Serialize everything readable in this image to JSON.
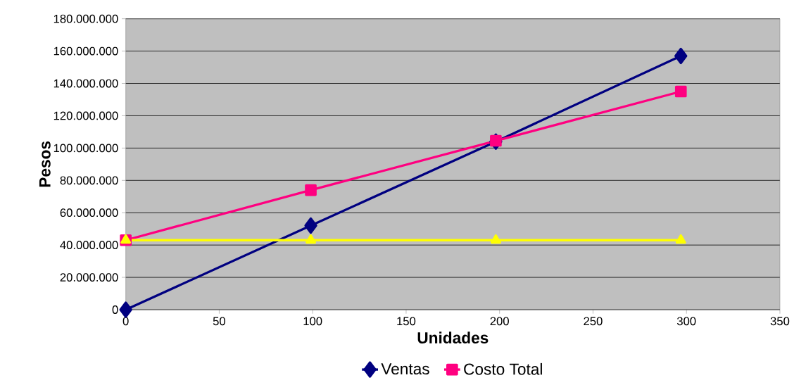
{
  "chart_data": {
    "type": "line",
    "xlabel": "Unidades",
    "ylabel": "Pesos",
    "x": [
      0,
      99,
      198,
      297
    ],
    "series": [
      {
        "name": "Ventas",
        "color": "#000080",
        "marker": "diamond",
        "values": [
          0,
          52000000,
          104000000,
          157000000
        ]
      },
      {
        "name": "Costo Total",
        "color": "#ff0080",
        "marker": "square",
        "values": [
          43000000,
          74000000,
          104500000,
          135000000
        ]
      },
      {
        "color": "#ffff00",
        "marker": "triangle",
        "values": [
          43000000,
          43000000,
          43000000,
          43000000
        ]
      }
    ],
    "xlim": [
      0,
      350
    ],
    "xticks": [
      0,
      50,
      100,
      150,
      200,
      250,
      300,
      350
    ],
    "ylim": [
      0,
      180000000
    ],
    "yticks": [
      {
        "value": 0,
        "label": "0"
      },
      {
        "value": 20000000,
        "label": "20.000.000"
      },
      {
        "value": 40000000,
        "label": "40.000.000"
      },
      {
        "value": 60000000,
        "label": "60.000.000"
      },
      {
        "value": 80000000,
        "label": "80.000.000"
      },
      {
        "value": 100000000,
        "label": "100.000.000"
      },
      {
        "value": 120000000,
        "label": "120.000.000"
      },
      {
        "value": 140000000,
        "label": "140.000.000"
      },
      {
        "value": 160000000,
        "label": "160.000.000"
      },
      {
        "value": 180000000,
        "label": "180.000.000"
      }
    ],
    "grid": "y",
    "legend": "bottom",
    "line_style": "solid"
  }
}
